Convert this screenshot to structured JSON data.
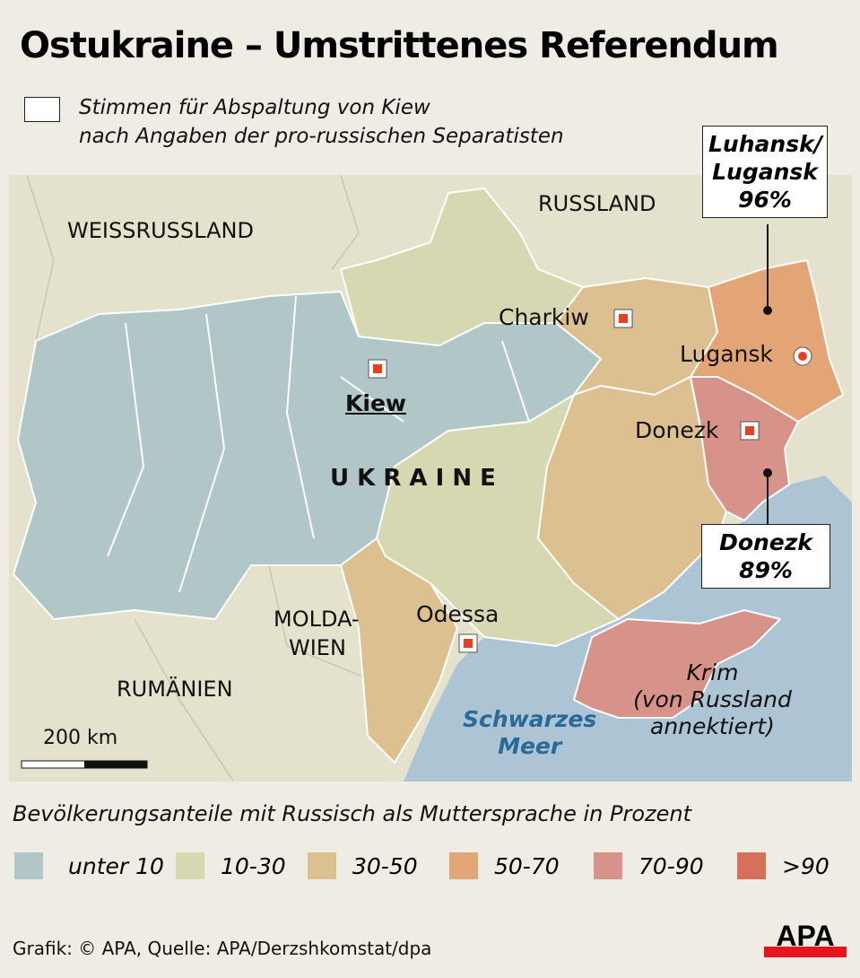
{
  "title": "Ostukraine – Umstrittenes Referendum",
  "subtitle_line1": "Stimmen für Abspaltung von Kiew",
  "subtitle_line2": "nach Angaben der pro-russischen Separatisten",
  "countries": {
    "belarus": "WEISSRUSSLAND",
    "russia": "RUSSLAND",
    "ukraine": "U K R A I N E",
    "moldova_1": "MOLDA-",
    "moldova_2": "WIEN",
    "romania": "RUMÄNIEN"
  },
  "cities": {
    "kiew": "Kiew",
    "charkiw": "Charkiw",
    "lugansk": "Lugansk",
    "donezk": "Donezk",
    "odessa": "Odessa"
  },
  "sea_1": "Schwarzes",
  "sea_2": "Meer",
  "krim": {
    "l1": "Krim",
    "l2": "(von Russland",
    "l3": "annektiert)"
  },
  "callouts": {
    "luhansk": {
      "l1": "Luhansk/",
      "l2": "Lugansk",
      "value": "96%"
    },
    "donezk": {
      "l1": "Donezk",
      "value": "89%"
    }
  },
  "scale": "200 km",
  "legend": {
    "title": "Bevölkerungsanteile mit Russisch als Muttersprache in Prozent",
    "items": [
      {
        "label": "unter 10",
        "color": "#b1c6c6"
      },
      {
        "label": "10-30",
        "color": "#d5d8b0"
      },
      {
        "label": "30-50",
        "color": "#dcc090"
      },
      {
        "label": "50-70",
        "color": "#e4a576"
      },
      {
        "label": "70-90",
        "color": "#d7928a"
      },
      {
        "label": ">90",
        "color": "#d7705a"
      }
    ]
  },
  "colors": {
    "neighbor": "#e4e2cc",
    "sea": "#adc4d4",
    "marker": "#e8401c"
  },
  "credit": "Grafik: © APA, Quelle: APA/Derzshkomstat/dpa",
  "logo": "APA"
}
